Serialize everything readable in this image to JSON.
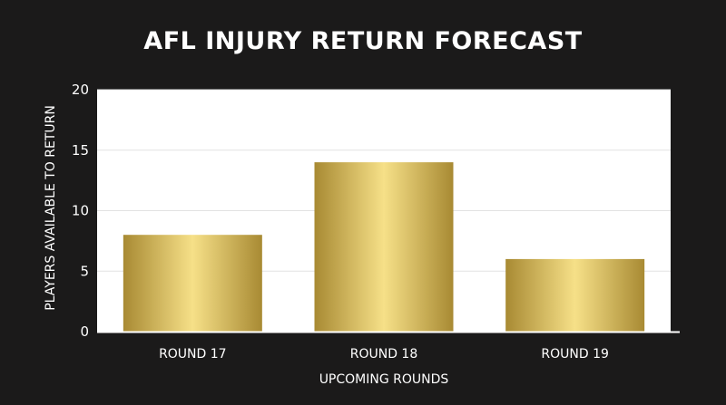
{
  "chart_data": {
    "type": "bar",
    "title": "AFL INJURY RETURN FORECAST",
    "xlabel": "UPCOMING ROUNDS",
    "ylabel": "PLAYERS AVAILABLE TO RETURN",
    "categories": [
      "ROUND 17",
      "ROUND 18",
      "ROUND 19"
    ],
    "values": [
      8,
      14,
      6
    ],
    "ylim": [
      0,
      20
    ],
    "yticks": [
      0,
      5,
      10,
      15,
      20
    ],
    "grid": true,
    "legend": "none",
    "colors": {
      "background": "#1b1a1a",
      "plot_area": "#ffffff",
      "gridline": "#e2e2e2",
      "bar_dark": "#a88a33",
      "bar_light": "#f6e088",
      "text": "#ffffff"
    }
  }
}
